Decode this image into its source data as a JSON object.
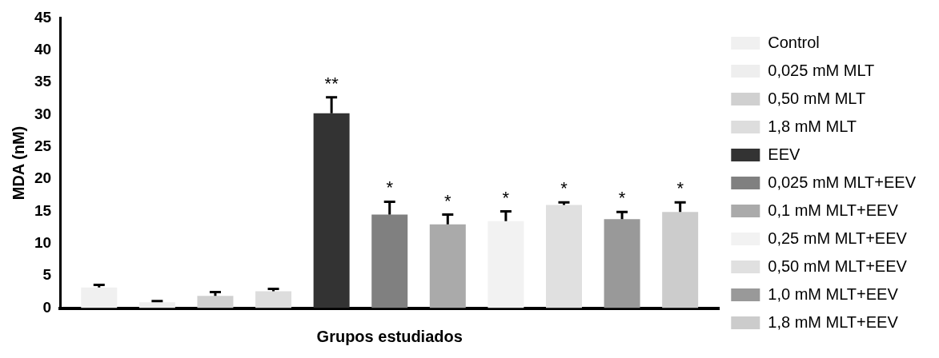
{
  "chart_data": {
    "type": "bar",
    "xlabel": "Grupos estudiados",
    "ylabel": "MDA (nM)",
    "categories": [
      null
    ],
    "series": [
      {
        "name": "Control",
        "color": "#f0f0f0",
        "values": [
          3.2
        ],
        "errors": [
          0.4
        ]
      },
      {
        "name": "0,025 mM MLT",
        "color": "#eeeeee",
        "values": [
          0.9
        ],
        "errors": [
          0.2
        ]
      },
      {
        "name": "0,50 mM MLT",
        "color": "#d0d0d0",
        "values": [
          1.9
        ],
        "errors": [
          0.6
        ]
      },
      {
        "name": "1,8 mM MLT",
        "color": "#dddddd",
        "values": [
          2.6
        ],
        "errors": [
          0.4
        ]
      },
      {
        "name": "EEV",
        "color": "#333333",
        "values": [
          30.2
        ],
        "errors": [
          2.5
        ]
      },
      {
        "name": "0,025 mM MLT+EEV",
        "color": "#808080",
        "values": [
          14.5
        ],
        "errors": [
          2.0
        ]
      },
      {
        "name": "0,1 mM MLT+EEV",
        "color": "#aaaaaa",
        "values": [
          13.0
        ],
        "errors": [
          1.5
        ]
      },
      {
        "name": "0,25 mM MLT+EEV",
        "color": "#f2f2f2",
        "values": [
          13.5
        ],
        "errors": [
          1.5
        ]
      },
      {
        "name": "0,50 mM MLT+EEV",
        "color": "#e0e0e0",
        "values": [
          16.0
        ],
        "errors": [
          0.4
        ]
      },
      {
        "name": "1,0 mM MLT+EEV",
        "color": "#999999",
        "values": [
          13.8
        ],
        "errors": [
          1.1
        ]
      },
      {
        "name": "1,8 mM MLT+EEV",
        "color": "#cccccc",
        "values": [
          14.9
        ],
        "errors": [
          1.5
        ]
      }
    ],
    "annotations": [
      "**",
      "*",
      "*",
      "*",
      "*",
      "*",
      "*"
    ],
    "ylim": [
      0,
      45
    ],
    "yticks": [
      0,
      5,
      10,
      15,
      20,
      25,
      30,
      35,
      40,
      45
    ],
    "grid": false,
    "legend": "right"
  }
}
